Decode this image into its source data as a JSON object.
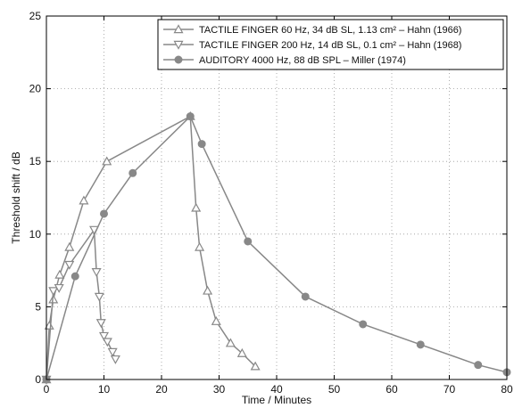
{
  "chart_data": {
    "type": "line",
    "xlabel": "Time / Minutes",
    "ylabel": "Threshold shift / dB",
    "xlim": [
      0,
      80
    ],
    "ylim": [
      0,
      25
    ],
    "xticks": [
      0,
      10,
      20,
      30,
      40,
      50,
      60,
      70,
      80
    ],
    "yticks": [
      0,
      5,
      10,
      15,
      20,
      25
    ],
    "grid": true,
    "grid_style": "dotted",
    "legend_position": "top-right",
    "line_color": "#888888",
    "series": [
      {
        "name": "TACTILE FINGER 60 Hz, 34 dB SL, 1.13 cm² – Hahn (1966)",
        "marker": "triangle-up",
        "x": [
          0,
          0.5,
          1.2,
          2.3,
          4,
          6.5,
          10.5,
          25,
          26,
          26.6,
          28,
          29.5,
          32,
          34,
          36.3
        ],
        "y": [
          0,
          3.7,
          5.5,
          7.2,
          9.1,
          12.3,
          15,
          18.1,
          11.8,
          9.1,
          6.1,
          4,
          2.5,
          1.8,
          0.9
        ]
      },
      {
        "name": "TACTILE FINGER 200 Hz, 14 dB SL, 0.1 cm² – Hahn (1968)",
        "marker": "triangle-down",
        "x": [
          0,
          1.2,
          2.2,
          4,
          8.3,
          8.7,
          9.2,
          9.5,
          10,
          10.6,
          11.5,
          12
        ],
        "y": [
          0,
          6.1,
          6.3,
          7.9,
          10.3,
          7.4,
          5.7,
          3.9,
          3,
          2.6,
          1.9,
          1.4
        ]
      },
      {
        "name": "AUDITORY 4000 Hz, 88 dB SPL – Miller (1974)",
        "marker": "circle",
        "x": [
          0,
          5,
          10,
          15,
          25,
          27,
          35,
          45,
          55,
          65,
          75,
          80
        ],
        "y": [
          0,
          7.1,
          11.4,
          14.2,
          18.1,
          16.2,
          9.5,
          5.7,
          3.8,
          2.4,
          1,
          0.5
        ]
      }
    ]
  }
}
